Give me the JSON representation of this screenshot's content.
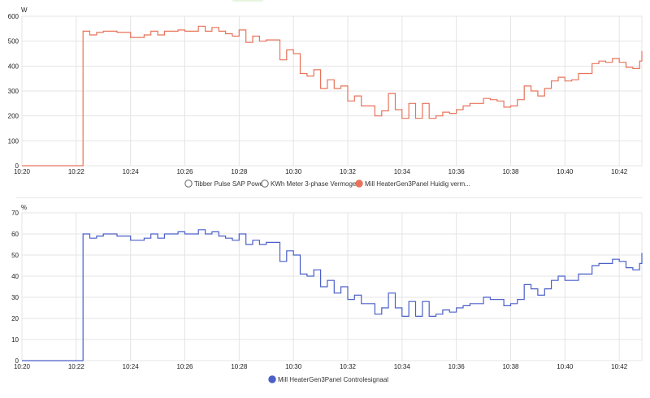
{
  "chart_data": [
    {
      "type": "line",
      "unit": "W",
      "ylim": [
        0,
        600
      ],
      "yticks": [
        "0",
        "100",
        "200",
        "300",
        "400",
        "500",
        "600"
      ],
      "xticks": [
        "10:20",
        "10:22",
        "10:24",
        "10:26",
        "10:28",
        "10:30",
        "10:32",
        "10:34",
        "10:36",
        "10:38",
        "10:40",
        "10:42"
      ],
      "xlim": [
        "10:20",
        "10:42:50"
      ],
      "grid": true,
      "step": true,
      "legend_position": "bottom",
      "legend": [
        {
          "name": "Tibber Pulse SAP Power",
          "color": "#ffffff",
          "hollow": true
        },
        {
          "name": "KWh Meter 3-phase Vermogen",
          "color": "#ffffff",
          "hollow": true
        },
        {
          "name": "Mill HeaterGen3Panel Huidig verm...",
          "color": "#e8735a",
          "hollow": false
        }
      ],
      "series": [
        {
          "name": "Mill HeaterGen3Panel Huidig verm...",
          "color": "#e8735a",
          "x": [
            "10:20:00",
            "10:22:15",
            "10:22:30",
            "10:22:45",
            "10:23:00",
            "10:23:30",
            "10:24:00",
            "10:24:30",
            "10:24:45",
            "10:25:00",
            "10:25:15",
            "10:25:30",
            "10:25:45",
            "10:26:00",
            "10:26:30",
            "10:26:45",
            "10:27:00",
            "10:27:15",
            "10:27:30",
            "10:27:45",
            "10:28:00",
            "10:28:15",
            "10:28:30",
            "10:28:45",
            "10:29:00",
            "10:29:30",
            "10:29:45",
            "10:30:00",
            "10:30:15",
            "10:30:30",
            "10:30:45",
            "10:31:00",
            "10:31:15",
            "10:31:30",
            "10:31:45",
            "10:32:00",
            "10:32:15",
            "10:32:30",
            "10:32:45",
            "10:33:00",
            "10:33:15",
            "10:33:30",
            "10:33:45",
            "10:34:00",
            "10:34:15",
            "10:34:30",
            "10:34:45",
            "10:35:00",
            "10:35:15",
            "10:35:30",
            "10:35:45",
            "10:36:00",
            "10:36:15",
            "10:36:30",
            "10:37:00",
            "10:37:15",
            "10:37:30",
            "10:37:45",
            "10:38:00",
            "10:38:15",
            "10:38:30",
            "10:38:45",
            "10:39:00",
            "10:39:15",
            "10:39:30",
            "10:39:45",
            "10:40:00",
            "10:40:15",
            "10:40:30",
            "10:41:00",
            "10:41:15",
            "10:41:30",
            "10:41:45",
            "10:42:00",
            "10:42:15",
            "10:42:30",
            "10:42:45",
            "10:42:50"
          ],
          "y": [
            0,
            540,
            525,
            535,
            540,
            535,
            515,
            525,
            540,
            525,
            540,
            540,
            545,
            540,
            560,
            540,
            555,
            540,
            530,
            520,
            545,
            495,
            520,
            500,
            505,
            425,
            465,
            450,
            370,
            360,
            385,
            310,
            345,
            310,
            320,
            260,
            280,
            240,
            240,
            200,
            220,
            290,
            225,
            190,
            250,
            190,
            250,
            190,
            200,
            215,
            210,
            225,
            240,
            250,
            270,
            265,
            260,
            235,
            240,
            265,
            320,
            300,
            280,
            310,
            340,
            355,
            340,
            345,
            370,
            410,
            420,
            415,
            430,
            415,
            395,
            390,
            420,
            460
          ]
        }
      ]
    },
    {
      "type": "line",
      "unit": "%",
      "ylim": [
        0,
        70
      ],
      "yticks": [
        "0",
        "10",
        "20",
        "30",
        "40",
        "50",
        "60",
        "70"
      ],
      "xticks": [
        "10:20",
        "10:22",
        "10:24",
        "10:26",
        "10:28",
        "10:30",
        "10:32",
        "10:34",
        "10:36",
        "10:38",
        "10:40",
        "10:42"
      ],
      "xlim": [
        "10:20",
        "10:42:50"
      ],
      "grid": true,
      "step": true,
      "legend_position": "bottom",
      "legend": [
        {
          "name": "Mill HeaterGen3Panel Controlesignaal",
          "color": "#4a5fc8",
          "hollow": false
        }
      ],
      "series": [
        {
          "name": "Mill HeaterGen3Panel Controlesignaal",
          "color": "#4a5fc8",
          "x": [
            "10:20:00",
            "10:22:15",
            "10:22:30",
            "10:22:45",
            "10:23:00",
            "10:23:30",
            "10:24:00",
            "10:24:30",
            "10:24:45",
            "10:25:00",
            "10:25:15",
            "10:25:30",
            "10:25:45",
            "10:26:00",
            "10:26:30",
            "10:26:45",
            "10:27:00",
            "10:27:15",
            "10:27:30",
            "10:27:45",
            "10:28:00",
            "10:28:15",
            "10:28:30",
            "10:28:45",
            "10:29:00",
            "10:29:30",
            "10:29:45",
            "10:30:00",
            "10:30:15",
            "10:30:30",
            "10:30:45",
            "10:31:00",
            "10:31:15",
            "10:31:30",
            "10:31:45",
            "10:32:00",
            "10:32:15",
            "10:32:30",
            "10:32:45",
            "10:33:00",
            "10:33:15",
            "10:33:30",
            "10:33:45",
            "10:34:00",
            "10:34:15",
            "10:34:30",
            "10:34:45",
            "10:35:00",
            "10:35:15",
            "10:35:30",
            "10:35:45",
            "10:36:00",
            "10:36:15",
            "10:36:30",
            "10:37:00",
            "10:37:15",
            "10:37:30",
            "10:37:45",
            "10:38:00",
            "10:38:15",
            "10:38:30",
            "10:38:45",
            "10:39:00",
            "10:39:15",
            "10:39:30",
            "10:39:45",
            "10:40:00",
            "10:40:15",
            "10:40:30",
            "10:41:00",
            "10:41:15",
            "10:41:30",
            "10:41:45",
            "10:42:00",
            "10:42:15",
            "10:42:30",
            "10:42:45",
            "10:42:50"
          ],
          "y": [
            0,
            60,
            58,
            59,
            60,
            59,
            57,
            58,
            60,
            58,
            60,
            60,
            61,
            60,
            62,
            60,
            61,
            59,
            58,
            57,
            60,
            55,
            57,
            55,
            56,
            47,
            52,
            50,
            41,
            40,
            43,
            35,
            38,
            32,
            35,
            29,
            31,
            27,
            27,
            22,
            25,
            32,
            25,
            21,
            28,
            21,
            28,
            21,
            22,
            24,
            23,
            25,
            26,
            27,
            30,
            29,
            29,
            26,
            27,
            29,
            36,
            34,
            31,
            34,
            38,
            40,
            38,
            38,
            41,
            45,
            46,
            46,
            48,
            47,
            44,
            43,
            46,
            51
          ]
        }
      ]
    }
  ]
}
